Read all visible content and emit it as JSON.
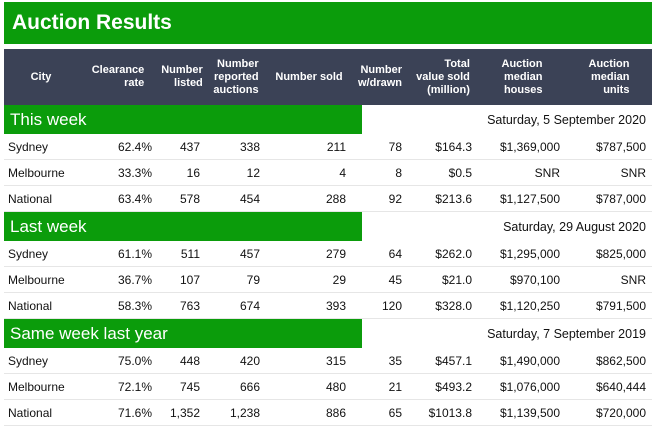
{
  "title": "Auction Results",
  "columns": [
    "City",
    "Clearance\nrate",
    "Number\nlisted",
    "Number\nreported\nauctions",
    "Number sold",
    "Number\nw/drawn",
    "Total\nvalue sold\n(million)",
    "Auction\nmedian\nhouses",
    "Auction\nmedian\nunits"
  ],
  "sections": [
    {
      "label": "This week",
      "date": "Saturday, 5 September 2020",
      "rows": [
        [
          "Sydney",
          "62.4%",
          "437",
          "338",
          "211",
          "78",
          "$164.3",
          "$1,369,000",
          "$787,500"
        ],
        [
          "Melbourne",
          "33.3%",
          "16",
          "12",
          "4",
          "8",
          "$0.5",
          "SNR",
          "SNR"
        ],
        [
          "National",
          "63.4%",
          "578",
          "454",
          "288",
          "92",
          "$213.6",
          "$1,127,500",
          "$787,000"
        ]
      ]
    },
    {
      "label": "Last week",
      "date": "Saturday, 29 August 2020",
      "rows": [
        [
          "Sydney",
          "61.1%",
          "511",
          "457",
          "279",
          "64",
          "$262.0",
          "$1,295,000",
          "$825,000"
        ],
        [
          "Melbourne",
          "36.7%",
          "107",
          "79",
          "29",
          "45",
          "$21.0",
          "$970,100",
          "SNR"
        ],
        [
          "National",
          "58.3%",
          "763",
          "674",
          "393",
          "120",
          "$328.0",
          "$1,120,250",
          "$791,500"
        ]
      ]
    },
    {
      "label": "Same week last year",
      "date": "Saturday, 7 September 2019",
      "rows": [
        [
          "Sydney",
          "75.0%",
          "448",
          "420",
          "315",
          "35",
          "$457.1",
          "$1,490,000",
          "$862,500"
        ],
        [
          "Melbourne",
          "72.1%",
          "745",
          "666",
          "480",
          "21",
          "$493.2",
          "$1,076,000",
          "$640,444"
        ],
        [
          "National",
          "71.6%",
          "1,352",
          "1,238",
          "886",
          "65",
          "$1013.8",
          "$1,139,500",
          "$720,000"
        ]
      ]
    }
  ],
  "colors": {
    "accent_green": "#0b9c0b",
    "header_bg": "#3b4256"
  }
}
